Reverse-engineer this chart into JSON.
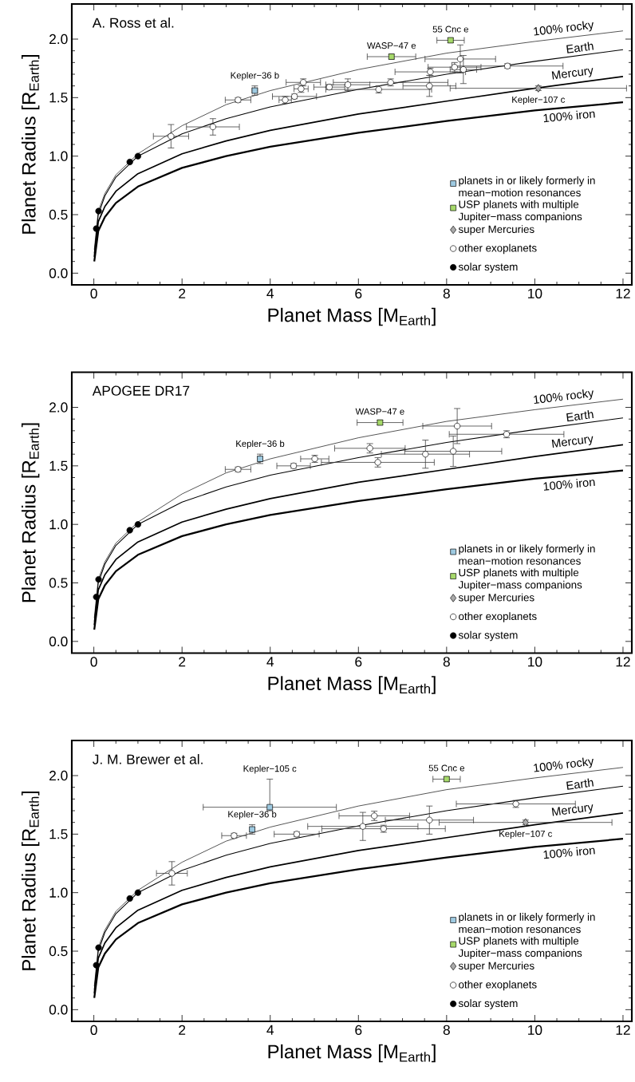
{
  "chart_data": [
    {
      "type": "scatter",
      "title": "A. Ross et al.",
      "xlabel": "Planet Mass [M$_{Earth}$]",
      "ylabel": "Planet Radius [R$_{Earth}$]",
      "xlim": [
        -0.5,
        12.2
      ],
      "ylim": [
        -0.1,
        2.3
      ],
      "xticks": [
        0,
        2,
        4,
        6,
        8,
        10,
        12
      ],
      "yticks": [
        {
          "value": 0,
          "label": "0.0"
        },
        {
          "value": 0.5,
          "label": "0.5"
        },
        {
          "value": 1,
          "label": "1.0"
        },
        {
          "value": 1.5,
          "label": "1.5"
        },
        {
          "value": 2,
          "label": "2.0"
        }
      ],
      "legend": "bottom right",
      "series": [
        {
          "type": "line",
          "name": "100% rocky",
          "color": "#000000",
          "line_style": "solid",
          "marker": "none",
          "x": [
            0.01,
            0.1,
            0.25,
            0.5,
            1,
            2,
            3,
            4,
            6,
            8,
            10,
            12
          ],
          "values": [
            0.2,
            0.53,
            0.68,
            0.84,
            1.02,
            1.26,
            1.44,
            1.56,
            1.74,
            1.88,
            1.98,
            2.07
          ]
        },
        {
          "type": "line",
          "name": "Earth",
          "color": "#000000",
          "line_style": "solid",
          "marker": "none",
          "x": [
            0.01,
            0.1,
            0.25,
            0.5,
            1,
            2,
            3,
            4,
            6,
            8,
            10,
            12
          ],
          "values": [
            0.17,
            0.5,
            0.66,
            0.82,
            1.0,
            1.19,
            1.32,
            1.42,
            1.57,
            1.7,
            1.81,
            1.91
          ]
        },
        {
          "type": "line",
          "name": "Mercury",
          "color": "#000000",
          "line_style": "solid",
          "marker": "none",
          "x": [
            0.01,
            0.1,
            0.25,
            0.5,
            1,
            2,
            3,
            4,
            6,
            8,
            10,
            12
          ],
          "values": [
            0.14,
            0.44,
            0.57,
            0.7,
            0.85,
            1.02,
            1.13,
            1.22,
            1.36,
            1.47,
            1.58,
            1.68
          ]
        },
        {
          "type": "line",
          "name": "100% iron",
          "color": "#000000",
          "line_style": "solid",
          "marker": "none",
          "x": [
            0.01,
            0.1,
            0.25,
            0.5,
            1,
            2,
            3,
            4,
            6,
            8,
            10,
            12
          ],
          "values": [
            0.1,
            0.36,
            0.48,
            0.6,
            0.74,
            0.9,
            1.0,
            1.08,
            1.2,
            1.3,
            1.39,
            1.46
          ]
        },
        {
          "name": "planets in or likely formerly in mean−motion resonances",
          "color": "#9ecae1",
          "marker": "square",
          "x": [
            3.65
          ],
          "values": [
            1.56
          ],
          "errors": [
            0.04
          ],
          "xerrors": [
            0.06
          ]
        },
        {
          "name": "USP planets with multiple Jupiter−mass companions",
          "color": "#a6d96a",
          "marker": "square",
          "x": [
            6.75,
            8.09
          ],
          "values": [
            1.85,
            1.99
          ],
          "errors": [
            0.02,
            0.02
          ],
          "xerrors": [
            0.55,
            0.31
          ]
        },
        {
          "name": "super Mercuries",
          "color": "#aaaaaa",
          "marker": "diamond",
          "x": [
            10.08
          ],
          "values": [
            1.58
          ],
          "errors": [
            0.02
          ],
          "xerrors": [
            2.0
          ]
        },
        {
          "name": "other exoplanets",
          "color": "#ffffff",
          "marker": "circle",
          "x": [
            1.75,
            2.7,
            3.27,
            4.34,
            4.55,
            4.7,
            4.75,
            5.34,
            5.76,
            6.46,
            6.73,
            7.61,
            7.63,
            8.18,
            8.31,
            8.38,
            9.38
          ],
          "values": [
            1.17,
            1.25,
            1.48,
            1.48,
            1.51,
            1.575,
            1.63,
            1.59,
            1.61,
            1.57,
            1.63,
            1.6,
            1.72,
            1.76,
            1.83,
            1.74,
            1.77
          ],
          "errors": [
            0.1,
            0.07,
            0.02,
            0.03,
            0.02,
            0.03,
            0.03,
            0.02,
            0.05,
            0.03,
            0.03,
            0.09,
            0.03,
            0.04,
            0.12,
            0.12,
            0.02
          ],
          "xerrors": [
            0.4,
            0.6,
            0.29,
            0.14,
            0.5,
            0.16,
            0.39,
            0.35,
            0.5,
            1.2,
            1.3,
            0.6,
            0.8,
            0.6,
            0.8,
            0.3,
            1.26
          ]
        },
        {
          "name": "solar system",
          "color": "#000000",
          "marker": "circle",
          "x": [
            0.055,
            0.107,
            0.815,
            1.0
          ],
          "values": [
            0.38,
            0.53,
            0.95,
            1.0
          ]
        }
      ],
      "annotations": [
        {
          "text": "Kepler−36 b",
          "x": 3.65,
          "y": 1.56
        },
        {
          "text": "WASP−47 e",
          "x": 6.75,
          "y": 1.85
        },
        {
          "text": "55 Cnc e",
          "x": 8.09,
          "y": 1.99
        },
        {
          "text": "Kepler−107 c",
          "x": 10.08,
          "y": 1.58
        }
      ]
    },
    {
      "type": "scatter",
      "title": "APOGEE DR17",
      "xlabel": "Planet Mass [M$_{Earth}$]",
      "ylabel": "Planet Radius [R$_{Earth}$]",
      "xlim": [
        -0.5,
        12.2
      ],
      "ylim": [
        -0.1,
        2.3
      ],
      "xticks": [
        0,
        2,
        4,
        6,
        8,
        10,
        12
      ],
      "yticks": [
        {
          "value": 0,
          "label": "0.0"
        },
        {
          "value": 0.5,
          "label": "0.5"
        },
        {
          "value": 1,
          "label": "1.0"
        },
        {
          "value": 1.5,
          "label": "1.5"
        },
        {
          "value": 2,
          "label": "2.0"
        }
      ],
      "legend": "bottom right",
      "series": [
        {
          "type": "line",
          "name": "100% rocky",
          "color": "#000000",
          "line_style": "solid",
          "marker": "none",
          "x": [
            0.01,
            0.1,
            0.25,
            0.5,
            1,
            2,
            3,
            4,
            6,
            8,
            10,
            12
          ],
          "values": [
            0.2,
            0.53,
            0.68,
            0.84,
            1.02,
            1.26,
            1.44,
            1.56,
            1.74,
            1.88,
            1.98,
            2.07
          ]
        },
        {
          "type": "line",
          "name": "Earth",
          "color": "#000000",
          "line_style": "solid",
          "marker": "none",
          "x": [
            0.01,
            0.1,
            0.25,
            0.5,
            1,
            2,
            3,
            4,
            6,
            8,
            10,
            12
          ],
          "values": [
            0.17,
            0.5,
            0.66,
            0.82,
            1.0,
            1.19,
            1.32,
            1.42,
            1.57,
            1.7,
            1.81,
            1.91
          ]
        },
        {
          "type": "line",
          "name": "Mercury",
          "color": "#000000",
          "line_style": "solid",
          "marker": "none",
          "x": [
            0.01,
            0.1,
            0.25,
            0.5,
            1,
            2,
            3,
            4,
            6,
            8,
            10,
            12
          ],
          "values": [
            0.14,
            0.44,
            0.57,
            0.7,
            0.85,
            1.02,
            1.13,
            1.22,
            1.36,
            1.47,
            1.58,
            1.68
          ]
        },
        {
          "type": "line",
          "name": "100% iron",
          "color": "#000000",
          "line_style": "solid",
          "marker": "none",
          "x": [
            0.01,
            0.1,
            0.25,
            0.5,
            1,
            2,
            3,
            4,
            6,
            8,
            10,
            12
          ],
          "values": [
            0.1,
            0.36,
            0.48,
            0.6,
            0.74,
            0.9,
            1.0,
            1.08,
            1.2,
            1.3,
            1.39,
            1.46
          ]
        },
        {
          "name": "planets in or likely formerly in mean−motion resonances",
          "color": "#9ecae1",
          "marker": "square",
          "x": [
            3.77
          ],
          "values": [
            1.56
          ],
          "errors": [
            0.04
          ],
          "xerrors": [
            0.05
          ]
        },
        {
          "name": "USP planets with multiple Jupiter−mass companions",
          "color": "#a6d96a",
          "marker": "square",
          "x": [
            6.49
          ],
          "values": [
            1.87
          ],
          "errors": [
            0.02
          ],
          "xerrors": [
            0.52
          ]
        },
        {
          "name": "super Mercuries",
          "color": "#aaaaaa",
          "marker": "diamond"
        },
        {
          "name": "other exoplanets",
          "color": "#ffffff",
          "marker": "circle",
          "x": [
            3.27,
            4.53,
            5.01,
            6.26,
            6.44,
            7.52,
            8.15,
            8.24,
            9.36
          ],
          "values": [
            1.47,
            1.5,
            1.56,
            1.65,
            1.53,
            1.6,
            1.625,
            1.84,
            1.77
          ],
          "errors": [
            0.02,
            0.02,
            0.03,
            0.04,
            0.04,
            0.12,
            0.13,
            0.15,
            0.03
          ],
          "xerrors": [
            0.29,
            0.38,
            0.32,
            0.8,
            1.28,
            1.0,
            1.1,
            0.78,
            1.3
          ]
        },
        {
          "name": "solar system",
          "color": "#000000",
          "marker": "circle",
          "x": [
            0.055,
            0.107,
            0.815,
            1.0
          ],
          "values": [
            0.38,
            0.53,
            0.95,
            1.0
          ]
        }
      ],
      "annotations": [
        {
          "text": "Kepler−36 b",
          "x": 3.77,
          "y": 1.56
        },
        {
          "text": "WASP−47 e",
          "x": 6.49,
          "y": 1.87
        }
      ]
    },
    {
      "type": "scatter",
      "title": "J. M. Brewer et al.",
      "xlabel": "Planet Mass [M$_{Earth}$]",
      "ylabel": "Planet Radius [R$_{Earth}$]",
      "xlim": [
        -0.5,
        12.2
      ],
      "ylim": [
        -0.1,
        2.3
      ],
      "xticks": [
        0,
        2,
        4,
        6,
        8,
        10,
        12
      ],
      "yticks": [
        {
          "value": 0,
          "label": "0.0"
        },
        {
          "value": 0.5,
          "label": "0.5"
        },
        {
          "value": 1,
          "label": "1.0"
        },
        {
          "value": 1.5,
          "label": "1.5"
        },
        {
          "value": 2,
          "label": "2.0"
        }
      ],
      "legend": "bottom right",
      "series": [
        {
          "type": "line",
          "name": "100% rocky",
          "color": "#000000",
          "line_style": "solid",
          "marker": "none",
          "x": [
            0.01,
            0.1,
            0.25,
            0.5,
            1,
            2,
            3,
            4,
            6,
            8,
            10,
            12
          ],
          "values": [
            0.2,
            0.53,
            0.68,
            0.84,
            1.02,
            1.26,
            1.44,
            1.56,
            1.74,
            1.88,
            1.98,
            2.07
          ]
        },
        {
          "type": "line",
          "name": "Earth",
          "color": "#000000",
          "line_style": "solid",
          "marker": "none",
          "x": [
            0.01,
            0.1,
            0.25,
            0.5,
            1,
            2,
            3,
            4,
            6,
            8,
            10,
            12
          ],
          "values": [
            0.17,
            0.5,
            0.66,
            0.82,
            1.0,
            1.19,
            1.32,
            1.42,
            1.57,
            1.7,
            1.81,
            1.91
          ]
        },
        {
          "type": "line",
          "name": "Mercury",
          "color": "#000000",
          "line_style": "solid",
          "marker": "none",
          "x": [
            0.01,
            0.1,
            0.25,
            0.5,
            1,
            2,
            3,
            4,
            6,
            8,
            10,
            12
          ],
          "values": [
            0.14,
            0.44,
            0.57,
            0.7,
            0.85,
            1.02,
            1.13,
            1.22,
            1.36,
            1.47,
            1.58,
            1.68
          ]
        },
        {
          "type": "line",
          "name": "100% iron",
          "color": "#000000",
          "line_style": "solid",
          "marker": "none",
          "x": [
            0.01,
            0.1,
            0.25,
            0.5,
            1,
            2,
            3,
            4,
            6,
            8,
            10,
            12
          ],
          "values": [
            0.1,
            0.36,
            0.48,
            0.6,
            0.74,
            0.9,
            1.0,
            1.08,
            1.2,
            1.3,
            1.39,
            1.46
          ]
        },
        {
          "name": "planets in or likely formerly in mean−motion resonances",
          "color": "#9ecae1",
          "marker": "square",
          "x": [
            3.99,
            3.59
          ],
          "values": [
            1.73,
            1.54
          ],
          "errors": [
            [
              1.7,
              1.97
            ],
            0.04
          ],
          "xerrors": [
            1.51,
            0.05
          ]
        },
        {
          "name": "USP planets with multiple Jupiter−mass companions",
          "color": "#a6d96a",
          "marker": "square",
          "x": [
            8.0
          ],
          "values": [
            1.97
          ],
          "errors": [
            0.02
          ],
          "xerrors": [
            0.31
          ]
        },
        {
          "name": "super Mercuries",
          "color": "#aaaaaa",
          "marker": "diamond",
          "x": [
            9.79
          ],
          "values": [
            1.6
          ],
          "errors": [
            0.02
          ],
          "xerrors": [
            1.96
          ]
        },
        {
          "name": "other exoplanets",
          "color": "#ffffff",
          "marker": "circle",
          "x": [
            1.77,
            3.18,
            4.6,
            6.1,
            6.36,
            6.57,
            7.61,
            9.57
          ],
          "values": [
            1.165,
            1.487,
            1.5,
            1.566,
            1.656,
            1.546,
            1.62,
            1.758
          ],
          "errors": [
            0.1,
            0.02,
            0.02,
            0.12,
            0.04,
            0.03,
            0.12,
            0.03
          ],
          "xerrors": [
            0.35,
            0.28,
            0.51,
            1.25,
            0.8,
            1.4,
            1.0,
            1.35
          ]
        },
        {
          "name": "solar system",
          "color": "#000000",
          "marker": "circle",
          "x": [
            0.055,
            0.107,
            0.815,
            1.0
          ],
          "values": [
            0.38,
            0.53,
            0.95,
            1.0
          ]
        }
      ],
      "annotations": [
        {
          "text": "Kepler−105 c",
          "x": 3.99,
          "y": 1.97
        },
        {
          "text": "Kepler−36 b",
          "x": 3.59,
          "y": 1.54
        },
        {
          "text": "55 Cnc e",
          "x": 8.0,
          "y": 1.97
        },
        {
          "text": "Kepler−107 c",
          "x": 9.79,
          "y": 1.6
        }
      ]
    }
  ]
}
